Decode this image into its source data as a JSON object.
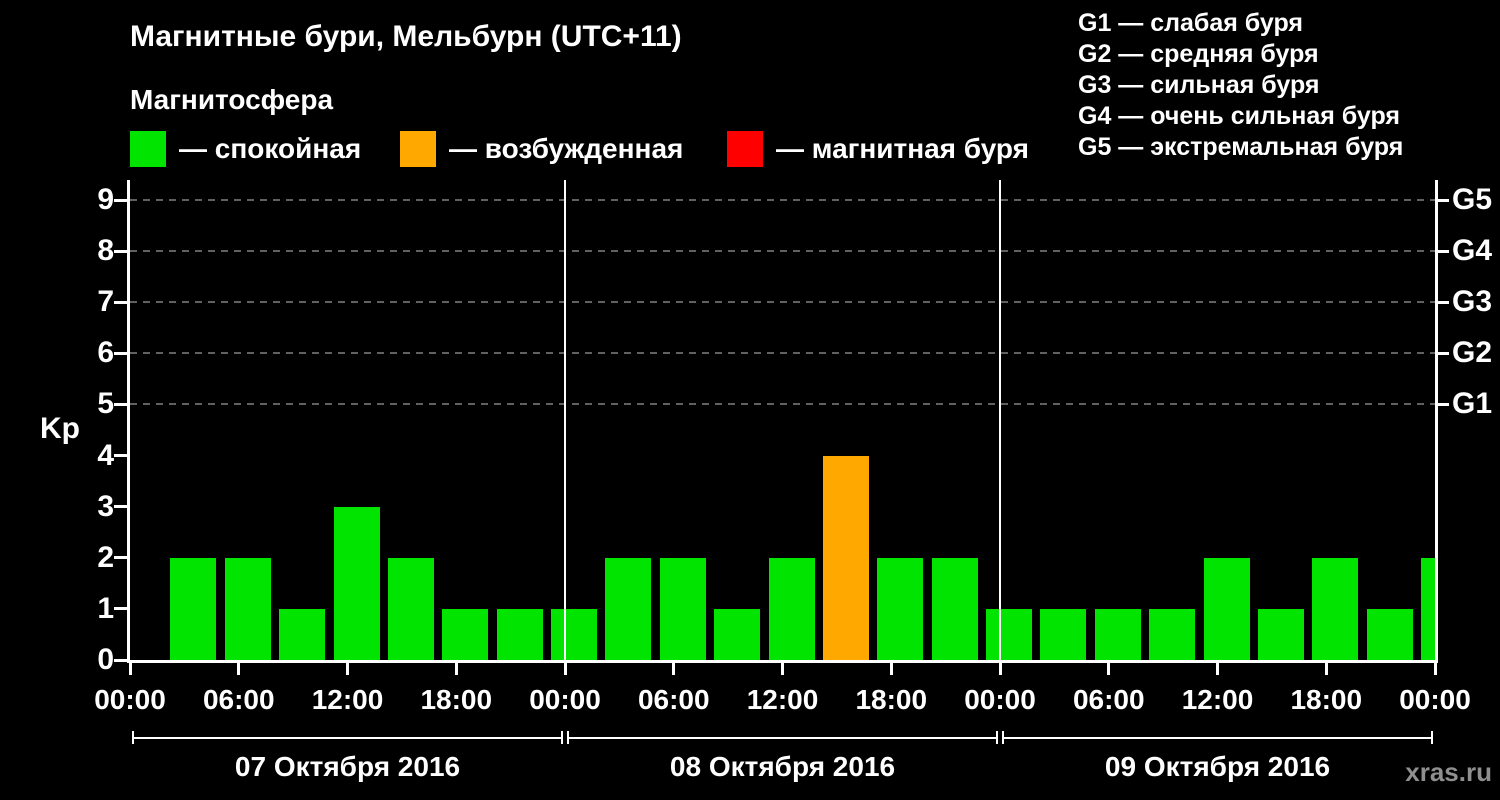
{
  "header": {
    "title": "Магнитные бури, Мельбурн (UTC+11)",
    "subtitle": "Магнитосфера"
  },
  "legend": {
    "items": [
      {
        "name": "quiet",
        "label": "— спокойная",
        "color": "#00e400"
      },
      {
        "name": "excited",
        "label": "— возбужденная",
        "color": "#ffa800"
      },
      {
        "name": "storm",
        "label": "— магнитная буря",
        "color": "#ff0000"
      }
    ]
  },
  "storm_scale_legend": [
    "G1 — слабая буря",
    "G2 — средняя буря",
    "G3 — сильная буря",
    "G4 — очень сильная буря",
    "G5 — экстремальная буря"
  ],
  "watermark": "xras.ru",
  "chart_data": {
    "type": "bar",
    "title": "Магнитные бури, Мельбурн (UTC+11)",
    "ylabel": "Kp",
    "ylim": [
      0,
      9
    ],
    "yticks": [
      0,
      1,
      2,
      3,
      4,
      5,
      6,
      7,
      8,
      9
    ],
    "gridline_levels": [
      5,
      6,
      7,
      8,
      9
    ],
    "right_axis_labels": [
      {
        "kp": 5,
        "label": "G1"
      },
      {
        "kp": 6,
        "label": "G2"
      },
      {
        "kp": 7,
        "label": "G3"
      },
      {
        "kp": 8,
        "label": "G4"
      },
      {
        "kp": 9,
        "label": "G5"
      }
    ],
    "hours_per_bar": 3,
    "time_ticks": [
      "00:00",
      "06:00",
      "12:00",
      "18:00"
    ],
    "days": [
      {
        "date": "07 Октября 2016",
        "kp_values": [
          0,
          2,
          2,
          1,
          3,
          2,
          1,
          1
        ]
      },
      {
        "date": "08 Октября 2016",
        "kp_values": [
          1,
          2,
          2,
          1,
          2,
          4,
          2,
          2
        ]
      },
      {
        "date": "09 Октября 2016",
        "kp_values": [
          1,
          1,
          1,
          1,
          2,
          1,
          2,
          1
        ]
      }
    ],
    "next_partial_bar_kp": 2,
    "bar_colors": {
      "quiet_max_kp": 3,
      "excited_max_kp": 4,
      "quiet": "#00e400",
      "excited": "#ffa800",
      "storm": "#ff0000"
    },
    "layout": {
      "legend_position": "top",
      "grid": "dashed horizontal lines at G1–G5 levels",
      "background": "#000000"
    }
  }
}
